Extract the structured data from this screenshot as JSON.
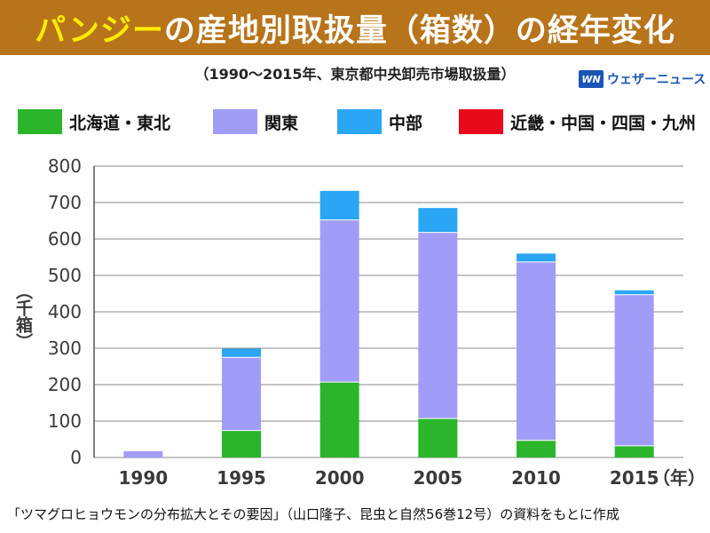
{
  "header": {
    "title_highlight": "パンジー",
    "title_rest": "の産地別取扱量（箱数）の経年変化",
    "subtitle": "（1990〜2015年、東京都中央卸売市場取扱量）",
    "background_color": "#b8741a",
    "highlight_color": "#ffeb00"
  },
  "brand": {
    "logo_text": "WN",
    "name": "ウェザーニュース",
    "logo_icon": "weathernews-logo-icon"
  },
  "caption": "「ツマグロヒョウモンの分布拡大とその要因」（山口隆子、昆虫と自然56巻12号）の資料をもとに作成",
  "chart_data": {
    "type": "bar",
    "stacked": true,
    "title": "パンジーの産地別取扱量（箱数）の経年変化",
    "subtitle": "（1990〜2015年、東京都中央卸売市場取扱量）",
    "ylabel": "（千箱）",
    "xlabel": "",
    "x_unit_label": "（年）",
    "categories": [
      "1990",
      "1995",
      "2000",
      "2005",
      "2010",
      "2015"
    ],
    "series": [
      {
        "name": "北海道・東北",
        "color": "#2ab52a",
        "values": [
          0,
          74,
          207,
          107,
          47,
          32
        ]
      },
      {
        "name": "関東",
        "color": "#a09cf8",
        "values": [
          17,
          201,
          445,
          511,
          490,
          415
        ]
      },
      {
        "name": "中部",
        "color": "#2aa6f5",
        "values": [
          0,
          24,
          80,
          67,
          23,
          12
        ]
      },
      {
        "name": "近畿・中国・四国・九州",
        "color": "#e8091a",
        "values": [
          0,
          0,
          0,
          0,
          0,
          0
        ]
      }
    ],
    "ylim": [
      0,
      800
    ],
    "yticks": [
      0,
      100,
      200,
      300,
      400,
      500,
      600,
      700,
      800
    ],
    "grid": true,
    "legend_position": "top"
  }
}
